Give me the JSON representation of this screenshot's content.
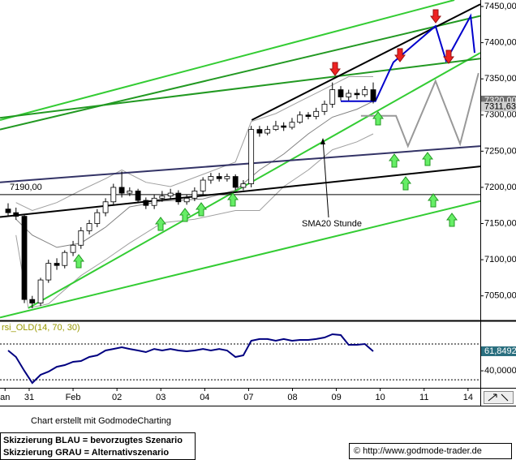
{
  "chart_data": [
    {
      "type": "candlestick",
      "xlim": [
        -0.665,
        10.28
      ],
      "ylim": [
        7016,
        7459
      ],
      "yticks": [
        {
          "value": 7050,
          "label": "7050,00"
        },
        {
          "value": 7100,
          "label": "7100,00"
        },
        {
          "value": 7150,
          "label": "7150,00"
        },
        {
          "value": 7200,
          "label": "7200,00"
        },
        {
          "value": 7250,
          "label": "7250,00"
        },
        {
          "value": 7300,
          "label": "7300,00"
        },
        {
          "value": 7350,
          "label": "7350,00"
        },
        {
          "value": 7400,
          "label": "7400,00"
        },
        {
          "value": 7450,
          "label": "7450,00"
        }
      ],
      "x": [
        -0.48,
        -0.3,
        -0.11,
        0.07,
        0.26,
        0.44,
        0.63,
        0.81,
        1.0,
        1.18,
        1.37,
        1.55,
        1.74,
        1.92,
        2.11,
        2.29,
        2.48,
        2.66,
        2.85,
        3.03,
        3.22,
        3.4,
        3.59,
        3.77,
        3.96,
        4.14,
        4.33,
        4.51,
        4.7,
        4.88,
        5.06,
        5.25,
        5.43,
        5.62,
        5.8,
        5.99,
        6.17,
        6.36,
        6.54,
        6.73,
        6.91,
        7.1,
        7.28,
        7.47,
        7.65,
        7.84
      ],
      "open": [
        7170,
        7165,
        7160,
        7045,
        7040,
        7072,
        7095,
        7092,
        7110,
        7120,
        7140,
        7150,
        7165,
        7180,
        7200,
        7192,
        7195,
        7182,
        7175,
        7185,
        7188,
        7192,
        7180,
        7185,
        7195,
        7210,
        7215,
        7212,
        7215,
        7200,
        7205,
        7280,
        7275,
        7280,
        7285,
        7283,
        7290,
        7300,
        7298,
        7305,
        7315,
        7335,
        7325,
        7330,
        7328,
        7335
      ],
      "high": [
        7178,
        7172,
        7163,
        7050,
        7075,
        7100,
        7102,
        7113,
        7126,
        7145,
        7155,
        7170,
        7185,
        7205,
        7222,
        7200,
        7198,
        7186,
        7190,
        7195,
        7198,
        7196,
        7190,
        7200,
        7214,
        7220,
        7220,
        7219,
        7218,
        7210,
        7285,
        7285,
        7285,
        7292,
        7290,
        7296,
        7305,
        7304,
        7310,
        7320,
        7345,
        7340,
        7335,
        7336,
        7340,
        7345
      ],
      "low": [
        7160,
        7155,
        7040,
        7033,
        7036,
        7068,
        7086,
        7088,
        7105,
        7115,
        7135,
        7145,
        7160,
        7175,
        7186,
        7188,
        7178,
        7170,
        7170,
        7180,
        7183,
        7176,
        7176,
        7181,
        7190,
        7205,
        7208,
        7208,
        7196,
        7196,
        7200,
        7270,
        7272,
        7278,
        7278,
        7280,
        7288,
        7294,
        7294,
        7300,
        7310,
        7320,
        7320,
        7322,
        7325,
        7316
      ],
      "close": [
        7165,
        7160,
        7045,
        7040,
        7072,
        7095,
        7092,
        7110,
        7120,
        7140,
        7150,
        7165,
        7180,
        7200,
        7192,
        7195,
        7182,
        7175,
        7185,
        7188,
        7192,
        7180,
        7185,
        7195,
        7210,
        7215,
        7212,
        7215,
        7200,
        7205,
        7280,
        7275,
        7280,
        7285,
        7283,
        7290,
        7300,
        7298,
        7305,
        7315,
        7335,
        7325,
        7330,
        7328,
        7335,
        7320
      ],
      "series": [
        {
          "color": "#a0a0a0",
          "x": [
            -0.3,
            0.07,
            0.63,
            1.18,
            1.74,
            2.11,
            2.66,
            3.22,
            3.96,
            4.7,
            5.06,
            5.62,
            6.17,
            6.73,
            7.28,
            7.84
          ],
          "values": [
            7179,
            7168,
            7179,
            7196,
            7212,
            7224,
            7207,
            7201,
            7218,
            7235,
            7291,
            7302,
            7319,
            7336,
            7353,
            7353
          ]
        },
        {
          "color": "#a0a0a0",
          "x": [
            -0.3,
            -0.02,
            0.44,
            1.18,
            1.74,
            2.29,
            3.03,
            3.77,
            4.7,
            5.25,
            5.8,
            6.36,
            6.91,
            7.47,
            7.84
          ],
          "values": [
            7134,
            7033,
            7039,
            7078,
            7100,
            7123,
            7151,
            7156,
            7168,
            7168,
            7201,
            7224,
            7252,
            7263,
            7274
          ]
        },
        {
          "color": "#808080",
          "x": [
            -0.3,
            0.07,
            0.63,
            1.18,
            1.74,
            2.29,
            3.03,
            3.96,
            4.7,
            5.25,
            5.8,
            6.36,
            6.91,
            7.47,
            7.84
          ],
          "values": [
            7156,
            7134,
            7117,
            7123,
            7145,
            7173,
            7181,
            7184,
            7196,
            7224,
            7246,
            7274,
            7297,
            7308,
            7319
          ]
        },
        {
          "color": "#33cc33",
          "x": [
            -0.665,
            9.69
          ],
          "values": [
            7293,
            7459
          ]
        },
        {
          "color": "#33cc33",
          "x": [
            -0.02,
            10.28
          ],
          "values": [
            7033,
            7386
          ]
        },
        {
          "color": "#229922",
          "x": [
            -0.665,
            10.28
          ],
          "values": [
            7280,
            7437
          ]
        },
        {
          "color": "#229922",
          "x": [
            -0.665,
            10.28
          ],
          "values": [
            7296,
            7378
          ]
        },
        {
          "color": "#33cc33",
          "x": [
            -0.665,
            10.28
          ],
          "values": [
            7020,
            7181
          ]
        },
        {
          "color": "#333366",
          "x": [
            -0.665,
            10.28
          ],
          "values": [
            7207,
            7257
          ]
        },
        {
          "color": "#000000",
          "x": [
            -0.665,
            10.28
          ],
          "values": [
            7159,
            7229
          ]
        },
        {
          "color": "#000000",
          "x": [
            5.07,
            10.28
          ],
          "values": [
            7293,
            7453
          ]
        },
        {
          "color": "#0000cc",
          "x": [
            7.1,
            7.89,
            8.3,
            9.26,
            9.5,
            10.06,
            10.15
          ],
          "values": [
            7319,
            7319,
            7373,
            7423,
            7375,
            7437,
            7386
          ]
        },
        {
          "color": "#999999",
          "x": [
            7.56,
            8.36,
            8.63,
            9.26,
            9.82,
            10.24
          ],
          "values": [
            7299,
            7299,
            7257,
            7347,
            7260,
            7358
          ]
        }
      ],
      "reference_line": {
        "value": 7190,
        "label": "7190,00"
      },
      "last_labels": [
        {
          "value": 7320,
          "label": "7320,00"
        },
        {
          "value": 7311.63,
          "label": "7311,63"
        }
      ],
      "annotation": "SMA20 Stunde"
    },
    {
      "type": "line",
      "title": "rsi_OLD(14, 70, 30)",
      "color": "#000080",
      "xlim": [
        -0.665,
        10.28
      ],
      "ylim": [
        21,
        94.5
      ],
      "xticks": [
        {
          "value": -0.55,
          "label": "an"
        },
        {
          "value": 0,
          "label": "31"
        },
        {
          "value": 1,
          "label": "Feb"
        },
        {
          "value": 2,
          "label": "02"
        },
        {
          "value": 3,
          "label": "03"
        },
        {
          "value": 4,
          "label": "04"
        },
        {
          "value": 5,
          "label": "07"
        },
        {
          "value": 6,
          "label": "08"
        },
        {
          "value": 7,
          "label": "09"
        },
        {
          "value": 8,
          "label": "10"
        },
        {
          "value": 9,
          "label": "11"
        },
        {
          "value": 10,
          "label": "14"
        }
      ],
      "yticks": [
        {
          "value": 40,
          "label": "40,0000"
        }
      ],
      "levels": [
        70,
        30
      ],
      "x": [
        -0.48,
        -0.3,
        -0.11,
        0.07,
        0.26,
        0.44,
        0.63,
        0.81,
        1.0,
        1.18,
        1.37,
        1.55,
        1.74,
        1.92,
        2.11,
        2.29,
        2.48,
        2.66,
        2.85,
        3.03,
        3.22,
        3.4,
        3.59,
        3.77,
        3.96,
        4.14,
        4.33,
        4.51,
        4.7,
        4.88,
        5.06,
        5.25,
        5.43,
        5.62,
        5.8,
        5.99,
        6.17,
        6.36,
        6.54,
        6.73,
        6.91,
        7.1,
        7.28,
        7.47,
        7.65,
        7.84
      ],
      "values": [
        62.7,
        55.5,
        40,
        26.4,
        35.5,
        39.1,
        44.5,
        46.4,
        50,
        50.9,
        55.5,
        57.3,
        62.7,
        64.5,
        66.4,
        64.5,
        62.7,
        60.9,
        64.5,
        62.7,
        64.5,
        62.7,
        61.8,
        62.7,
        64.5,
        62.7,
        64.5,
        62.7,
        55.5,
        57.3,
        73.6,
        75.5,
        75.5,
        73.6,
        75.5,
        73.6,
        74.5,
        74.5,
        75.5,
        77.3,
        80.9,
        80,
        69.1,
        69.1,
        70,
        61.8
      ],
      "last_label": {
        "value": 61.8492,
        "label": "61,8492"
      }
    }
  ],
  "footer": {
    "credit": "Chart erstellt mit GodmodeCharting",
    "legend": [
      "Skizzierung BLAU = bevorzugtes Szenario",
      "Skizzierung GRAU = Alternativszenario"
    ],
    "copyright": "© http://www.godmode-trader.de"
  }
}
